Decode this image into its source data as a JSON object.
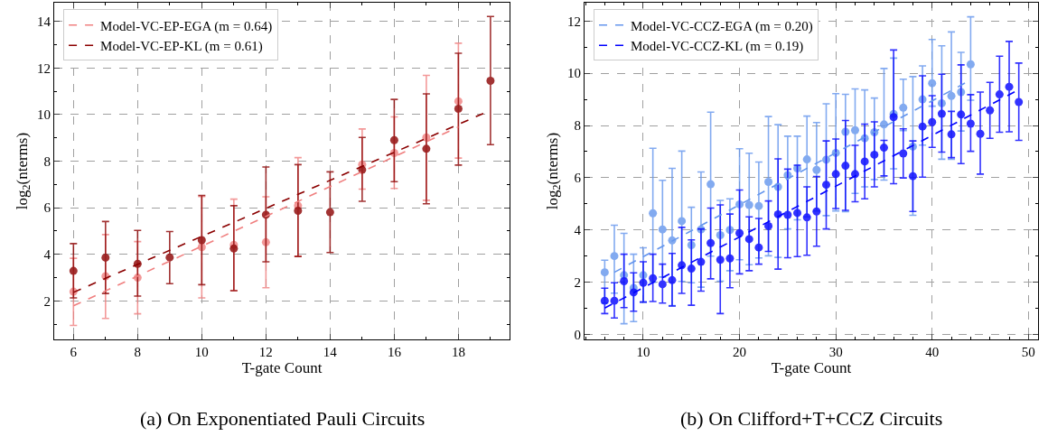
{
  "chart_data": [
    {
      "type": "scatter",
      "xlabel": "T-gate Count",
      "ylabel": "log$_{2}$(nterms)",
      "annotations": [
        "(a) On Exponentiated Pauli Circuits"
      ],
      "xlim": [
        5.4,
        19.6
      ],
      "ylim": [
        0.35,
        14.8
      ],
      "xticks": [
        6,
        8,
        10,
        12,
        14,
        16,
        18
      ],
      "yticks": [
        2,
        4,
        6,
        8,
        10,
        12,
        14
      ],
      "grid": true,
      "legend": "top left",
      "series": [
        {
          "marker": "circle",
          "color": "#f08080",
          "x": [
            6,
            7,
            8,
            9,
            10,
            11,
            12,
            13,
            14,
            15,
            16,
            17,
            18
          ],
          "values": [
            2.4,
            3.06,
            3.0,
            null,
            4.31,
            4.41,
            4.52,
            6.09,
            null,
            7.86,
            8.35,
            9.02,
            10.57
          ],
          "errors": [
            [
              0.95,
              3.83
            ],
            [
              1.25,
              4.85
            ],
            [
              1.45,
              4.55
            ],
            null,
            [
              2.13,
              6.48
            ],
            [
              2.44,
              6.37
            ],
            [
              2.57,
              6.47
            ],
            [
              3.92,
              8.15
            ],
            null,
            [
              6.8,
              9.38
            ],
            [
              6.83,
              9.9
            ],
            [
              6.32,
              11.68
            ],
            [
              8.13,
              13.06
            ]
          ]
        },
        {
          "marker": "circle",
          "color": "#8b0000",
          "x": [
            6,
            7,
            8,
            9,
            10,
            11,
            12,
            13,
            14,
            15,
            16,
            17,
            18,
            19
          ],
          "values": [
            3.29,
            3.86,
            3.59,
            3.87,
            4.61,
            4.25,
            5.7,
            5.87,
            5.81,
            7.63,
            8.9,
            8.53,
            10.25,
            11.45
          ],
          "errors": [
            [
              2.13,
              4.46
            ],
            [
              2.32,
              5.41
            ],
            [
              2.21,
              5.03
            ],
            [
              2.74,
              4.98
            ],
            [
              2.7,
              6.53
            ],
            [
              2.44,
              6.09
            ],
            [
              3.68,
              7.75
            ],
            [
              3.91,
              7.85
            ],
            [
              4.08,
              7.54
            ],
            [
              6.28,
              9.02
            ],
            [
              7.12,
              10.65
            ],
            [
              6.17,
              10.89
            ],
            [
              7.83,
              12.63
            ],
            [
              8.71,
              14.21
            ]
          ]
        },
        {
          "type": "line",
          "line_style": "dashed",
          "name": "Model-VC-EP-EGA (m = 0.64)",
          "color": "#f08080",
          "x": [
            6,
            18
          ],
          "values": [
            1.79,
            9.47
          ]
        },
        {
          "type": "line",
          "line_style": "dashed",
          "name": "Model-VC-EP-KL (m = 0.61)",
          "color": "#8b0000",
          "x": [
            6,
            19
          ],
          "values": [
            2.37,
            10.18
          ]
        }
      ]
    },
    {
      "type": "scatter",
      "xlabel": "T-gate Count",
      "ylabel": "log$_{2}$(nterms)",
      "annotations": [
        "(b) On Clifford+T+CCZ Circuits"
      ],
      "xlim": [
        3.9,
        51
      ],
      "ylim": [
        -0.19,
        12.7
      ],
      "xticks": [
        10,
        20,
        30,
        40,
        50
      ],
      "yticks": [
        0,
        2,
        4,
        6,
        8,
        10,
        12
      ],
      "grid": true,
      "legend": "top left",
      "series": [
        {
          "marker": "circle",
          "color": "#6495ed",
          "x": [
            6,
            7,
            8,
            9,
            10,
            11,
            12,
            13,
            14,
            15,
            16,
            17,
            18,
            19,
            20,
            21,
            22,
            23,
            24,
            25,
            26,
            27,
            28,
            29,
            30,
            31,
            32,
            33,
            34,
            35,
            36,
            37,
            38,
            39,
            40,
            41,
            42,
            43,
            44
          ],
          "values": [
            2.38,
            3.0,
            2.27,
            1.78,
            2.27,
            4.64,
            4.02,
            3.6,
            4.34,
            3.42,
            4.02,
            5.75,
            3.8,
            4.0,
            4.98,
            4.96,
            4.92,
            5.84,
            5.65,
            6.1,
            6.36,
            6.7,
            6.3,
            6.69,
            6.95,
            7.76,
            7.82,
            7.51,
            7.74,
            8.04,
            8.44,
            8.68,
            7.19,
            9.0,
            9.62,
            8.85,
            9.13,
            9.28,
            10.34
          ],
          "errors": [
            [
              1.2,
              2.84
            ],
            [
              1.58,
              4.18
            ],
            [
              0.41,
              3.87
            ],
            [
              0.49,
              3.07
            ],
            [
              1.24,
              3.32
            ],
            [
              2.0,
              7.13
            ],
            [
              2.2,
              5.9
            ],
            [
              1.1,
              6.36
            ],
            [
              2.03,
              7.02
            ],
            [
              1.98,
              4.87
            ],
            [
              1.81,
              6.22
            ],
            [
              3.0,
              8.51
            ],
            [
              2.04,
              5.13
            ],
            [
              2.44,
              5.19
            ],
            [
              2.86,
              7.11
            ],
            [
              2.67,
              6.94
            ],
            [
              2.93,
              6.6
            ],
            [
              3.01,
              8.34
            ],
            [
              2.95,
              8.03
            ],
            [
              4.04,
              7.59
            ],
            [
              4.39,
              7.59
            ],
            [
              4.5,
              8.36
            ],
            [
              4.73,
              8.11
            ],
            [
              4.55,
              8.83
            ],
            [
              4.73,
              9.22
            ],
            [
              4.7,
              9.19
            ],
            [
              5.4,
              9.4
            ],
            [
              5.65,
              9.36
            ],
            [
              5.93,
              9.05
            ],
            [
              5.91,
              10.18
            ],
            [
              6.34,
              10.58
            ],
            [
              7.8,
              9.77
            ],
            [
              4.56,
              9.87
            ],
            [
              7.25,
              10.28
            ],
            [
              8.74,
              11.29
            ],
            [
              6.71,
              11.05
            ],
            [
              6.71,
              11.58
            ],
            [
              7.79,
              10.8
            ],
            [
              8.97,
              12.16
            ]
          ]
        },
        {
          "marker": "circle",
          "color": "#0000ff",
          "x": [
            6,
            7,
            8,
            9,
            10,
            11,
            12,
            13,
            14,
            15,
            16,
            17,
            18,
            19,
            20,
            21,
            22,
            23,
            24,
            25,
            26,
            27,
            28,
            29,
            30,
            31,
            32,
            33,
            34,
            35,
            36,
            37,
            38,
            39,
            40,
            41,
            42,
            43,
            44,
            45,
            46,
            47,
            48,
            49
          ],
          "values": [
            1.29,
            1.29,
            2.04,
            1.61,
            1.98,
            2.15,
            1.92,
            2.08,
            2.65,
            2.52,
            2.78,
            3.5,
            2.86,
            2.91,
            3.88,
            3.65,
            3.33,
            4.15,
            4.6,
            4.58,
            4.65,
            4.48,
            4.71,
            5.73,
            6.14,
            6.46,
            6.14,
            6.62,
            6.88,
            7.15,
            8.32,
            6.93,
            6.06,
            7.96,
            8.13,
            8.45,
            7.66,
            8.42,
            8.07,
            7.68,
            8.58,
            9.19,
            9.48,
            8.9
          ],
          "errors": [
            [
              0.8,
              1.77
            ],
            [
              0.63,
              1.98
            ],
            [
              1.03,
              3.07
            ],
            [
              0.89,
              2.36
            ],
            [
              1.24,
              2.78
            ],
            [
              1.26,
              3.07
            ],
            [
              1.2,
              2.69
            ],
            [
              1.09,
              3.1
            ],
            [
              1.57,
              4.1
            ],
            [
              1.12,
              3.62
            ],
            [
              1.66,
              4.04
            ],
            [
              2.13,
              4.84
            ],
            [
              0.8,
              4.96
            ],
            [
              1.79,
              4.61
            ],
            [
              2.32,
              5.53
            ],
            [
              2.44,
              4.5
            ],
            [
              2.69,
              4.44
            ],
            [
              3.18,
              5.11
            ],
            [
              2.5,
              6.72
            ],
            [
              2.94,
              6.33
            ],
            [
              2.98,
              6.48
            ],
            [
              3.03,
              5.65
            ],
            [
              3.38,
              6.05
            ],
            [
              4.04,
              7.41
            ],
            [
              4.82,
              7.48
            ],
            [
              4.75,
              8.19
            ],
            [
              5.08,
              7.24
            ],
            [
              5.19,
              8.05
            ],
            [
              5.65,
              8.14
            ],
            [
              6.07,
              7.43
            ],
            [
              5.77,
              10.89
            ],
            [
              5.99,
              7.87
            ],
            [
              4.71,
              7.41
            ],
            [
              6.02,
              9.9
            ],
            [
              7.16,
              9.14
            ],
            [
              6.98,
              9.96
            ],
            [
              6.77,
              8.54
            ],
            [
              6.54,
              10.32
            ],
            [
              7.01,
              9.18
            ],
            [
              6.14,
              9.28
            ],
            [
              7.51,
              9.65
            ],
            [
              7.74,
              10.65
            ],
            [
              7.76,
              11.22
            ],
            [
              7.43,
              10.39
            ]
          ]
        },
        {
          "type": "line",
          "line_style": "dashed",
          "name": "Model-VC-CCZ-EGA (m = 0.20)",
          "color": "#6495ed",
          "x": [
            7,
            44
          ],
          "values": [
            2.38,
            9.74
          ]
        },
        {
          "type": "line",
          "line_style": "dashed",
          "name": "Model-VC-CCZ-KL (m = 0.19)",
          "color": "#0000ff",
          "x": [
            6,
            49
          ],
          "values": [
            1.01,
            9.37
          ]
        }
      ]
    }
  ]
}
